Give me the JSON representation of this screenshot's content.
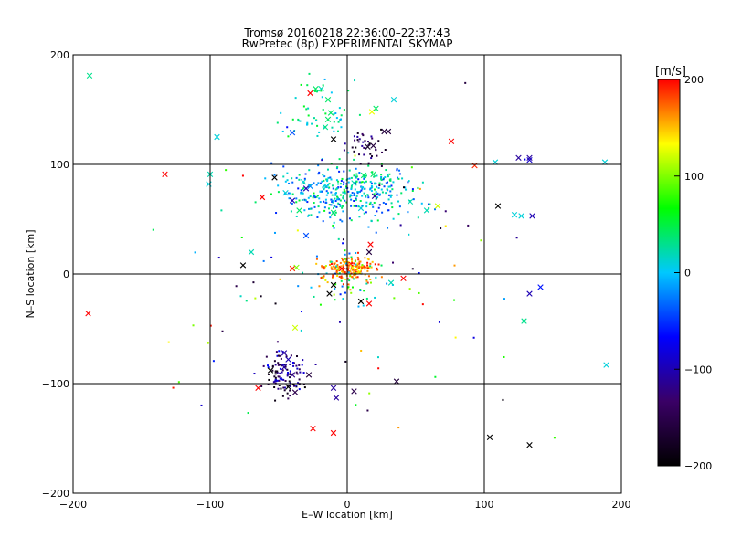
{
  "chart_data": {
    "type": "scatter",
    "title": "Tromsø 20160218 22:36:00–22:37:43",
    "subtitle": "RwPretec (8p) EXPERIMENTAL SKYMAP",
    "xlabel": "E–W location [km]",
    "ylabel": "N–S location [km]",
    "xlim": [
      -200,
      200
    ],
    "ylim": [
      -200,
      200
    ],
    "xticks": [
      "−200",
      "−100",
      "0",
      "100",
      "200"
    ],
    "yticks": [
      "−200",
      "−100",
      "0",
      "100",
      "200"
    ],
    "xtick_values": [
      -200,
      -100,
      0,
      100,
      200
    ],
    "ytick_values": [
      -200,
      -100,
      0,
      100,
      200
    ],
    "grid": true,
    "colorbar": {
      "label": "[m/s]",
      "min": -200,
      "max": 200,
      "ticks": [
        "200",
        "100",
        "0",
        "−100",
        "−200"
      ],
      "tick_values": [
        200,
        100,
        0,
        -100,
        -200
      ],
      "colormap": [
        "#000000",
        "#3a0066",
        "#0000ff",
        "#00c8ff",
        "#00ff00",
        "#ffff00",
        "#ff0000"
      ]
    },
    "crosses": [
      [
        -188,
        181,
        30
      ],
      [
        -133,
        91,
        200
      ],
      [
        -189,
        -36,
        200
      ],
      [
        -95,
        125,
        10
      ],
      [
        -100,
        91,
        20
      ],
      [
        -101,
        82,
        10
      ],
      [
        -62,
        70,
        200
      ],
      [
        -70,
        20,
        20
      ],
      [
        -76,
        8,
        -200
      ],
      [
        -40,
        5,
        190
      ],
      [
        -37,
        6,
        100
      ],
      [
        -38,
        -49,
        120
      ],
      [
        -40,
        129,
        -40
      ],
      [
        -27,
        165,
        200
      ],
      [
        -19,
        169,
        20
      ],
      [
        -23,
        169,
        40
      ],
      [
        -14,
        159,
        40
      ],
      [
        -12,
        147,
        40
      ],
      [
        -14,
        141,
        40
      ],
      [
        -16,
        134,
        30
      ],
      [
        -10,
        123,
        -200
      ],
      [
        18,
        148,
        130
      ],
      [
        21,
        151,
        40
      ],
      [
        34,
        159,
        10
      ],
      [
        30,
        130,
        -160
      ],
      [
        27,
        130,
        -160
      ],
      [
        19,
        117,
        -160
      ],
      [
        15,
        116,
        -180
      ],
      [
        76,
        121,
        200
      ],
      [
        93,
        99,
        190
      ],
      [
        108,
        102,
        10
      ],
      [
        125,
        106,
        -110
      ],
      [
        133,
        106,
        -110
      ],
      [
        133,
        104,
        -90
      ],
      [
        188,
        102,
        10
      ],
      [
        110,
        62,
        -200
      ],
      [
        122,
        54,
        10
      ],
      [
        127,
        53,
        10
      ],
      [
        135,
        53,
        -100
      ],
      [
        66,
        62,
        120
      ],
      [
        58,
        58,
        20
      ],
      [
        46,
        66,
        20
      ],
      [
        20,
        71,
        -110
      ],
      [
        -40,
        67,
        -100
      ],
      [
        -30,
        78,
        -100
      ],
      [
        -45,
        74,
        10
      ],
      [
        -35,
        58,
        40
      ],
      [
        -30,
        35,
        -40
      ],
      [
        -53,
        88,
        -200
      ],
      [
        -32,
        84,
        10
      ],
      [
        -27,
        80,
        -20
      ],
      [
        -15,
        80,
        10
      ],
      [
        5,
        83,
        20
      ],
      [
        12,
        90,
        40
      ],
      [
        19,
        91,
        40
      ],
      [
        10,
        60,
        10
      ],
      [
        -10,
        56,
        40
      ],
      [
        16,
        20,
        -160
      ],
      [
        17,
        27,
        200
      ],
      [
        9,
        2,
        130
      ],
      [
        4,
        6,
        130
      ],
      [
        -4,
        5,
        200
      ],
      [
        -10,
        -10,
        -200
      ],
      [
        -13,
        -18,
        -200
      ],
      [
        10,
        -25,
        -200
      ],
      [
        16,
        -27,
        200
      ],
      [
        41,
        -4,
        200
      ],
      [
        32,
        -8,
        20
      ],
      [
        133,
        -18,
        -100
      ],
      [
        141,
        -12,
        -60
      ],
      [
        129,
        -43,
        30
      ],
      [
        -46,
        -72,
        -110
      ],
      [
        -43,
        -78,
        -100
      ],
      [
        -46,
        -85,
        -110
      ],
      [
        -56,
        -88,
        -200
      ],
      [
        -40,
        -92,
        -120
      ],
      [
        -28,
        -92,
        -160
      ],
      [
        -65,
        -104,
        200
      ],
      [
        -43,
        -103,
        -200
      ],
      [
        -38,
        -108,
        -150
      ],
      [
        -8,
        -113,
        -110
      ],
      [
        -10,
        -104,
        -110
      ],
      [
        5,
        -107,
        -150
      ],
      [
        36,
        -98,
        -160
      ],
      [
        104,
        -149,
        -200
      ],
      [
        133,
        -156,
        -200
      ],
      [
        -25,
        -141,
        200
      ],
      [
        -10,
        -145,
        200
      ],
      [
        189,
        -83,
        10
      ]
    ],
    "clusters": [
      {
        "cx": 0,
        "cy": 75,
        "sx": 24,
        "sy": 13,
        "n": 380,
        "vmin": -60,
        "vmax": 60
      },
      {
        "cx": -18,
        "cy": 148,
        "sx": 13,
        "sy": 14,
        "n": 55,
        "vmin": -10,
        "vmax": 60
      },
      {
        "cx": 14,
        "cy": 118,
        "sx": 8,
        "sy": 9,
        "n": 40,
        "vmin": -200,
        "vmax": -100
      },
      {
        "cx": 3,
        "cy": 5,
        "sx": 10,
        "sy": 5,
        "n": 170,
        "vmin": 140,
        "vmax": 200
      },
      {
        "cx": 0,
        "cy": -2,
        "sx": 12,
        "sy": 12,
        "n": 70,
        "vmin": -50,
        "vmax": 200
      },
      {
        "cx": -47,
        "cy": -92,
        "sx": 8,
        "sy": 11,
        "n": 110,
        "vmin": -200,
        "vmax": -60
      },
      {
        "cx": 0,
        "cy": 0,
        "sx": 75,
        "sy": 70,
        "n": 90,
        "vmin": -200,
        "vmax": 200
      }
    ]
  }
}
